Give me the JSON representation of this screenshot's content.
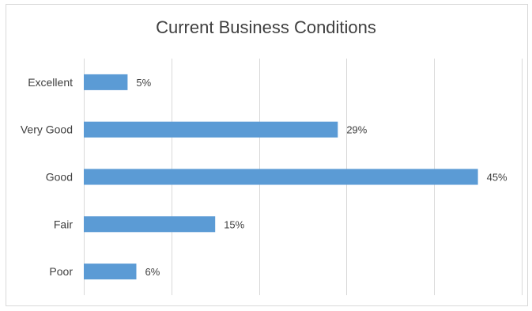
{
  "chart_data": {
    "type": "bar",
    "orientation": "horizontal",
    "title": "Current Business Conditions",
    "xlabel": "",
    "ylabel": "",
    "categories": [
      "Excellent",
      "Very Good",
      "Good",
      "Fair",
      "Poor"
    ],
    "values": [
      5,
      29,
      45,
      15,
      6
    ],
    "data_labels": [
      "5%",
      "29%",
      "45%",
      "15%",
      "6%"
    ],
    "unit": "%",
    "xlim": [
      0,
      50
    ],
    "grid": "vertical",
    "legend": "none",
    "bar_color": "#5b9bd5"
  }
}
